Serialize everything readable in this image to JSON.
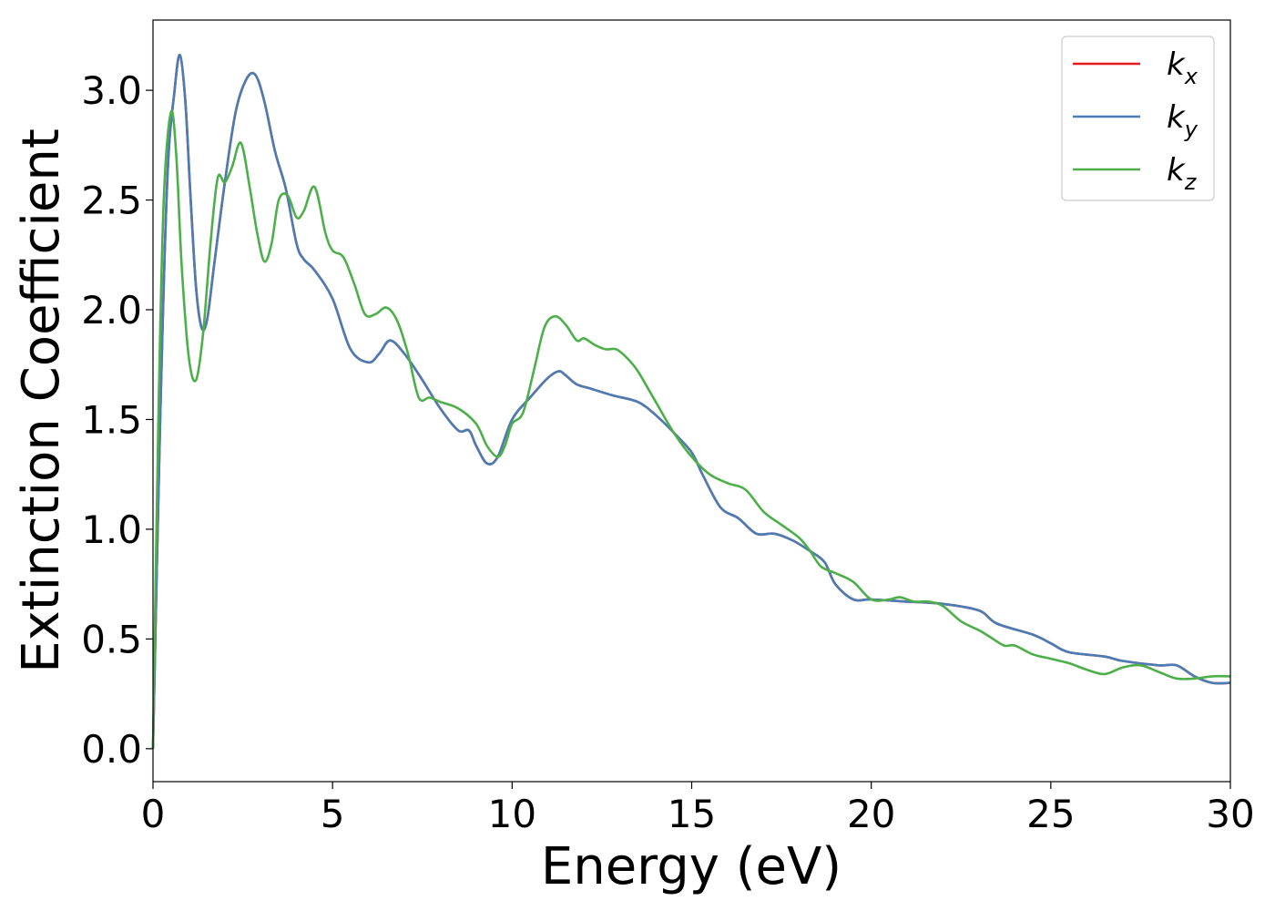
{
  "chart_data": {
    "type": "line",
    "xlabel": "Energy (eV)",
    "ylabel": "Extinction Coefficient",
    "xlim": [
      0,
      30
    ],
    "ylim": [
      -0.15,
      3.32
    ],
    "xticks": [
      0,
      5,
      10,
      15,
      20,
      25,
      30
    ],
    "xtick_labels": [
      "0",
      "5",
      "10",
      "15",
      "20",
      "25",
      "30"
    ],
    "yticks": [
      0.0,
      0.5,
      1.0,
      1.5,
      2.0,
      2.5,
      3.0
    ],
    "ytick_labels": [
      "0.0",
      "0.5",
      "1.0",
      "1.5",
      "2.0",
      "2.5",
      "3.0"
    ],
    "grid": false,
    "legend_position": "top-right",
    "series": [
      {
        "name": "k_x",
        "legend_base": "k",
        "legend_sub": "x",
        "color": "#e41a1c",
        "x": [
          0,
          0.2,
          0.4,
          0.6,
          0.75,
          0.9,
          1.05,
          1.2,
          1.35,
          1.5,
          1.7,
          2.0,
          2.3,
          2.6,
          2.85,
          3.1,
          3.4,
          3.7,
          4.0,
          4.2,
          4.5,
          5.0,
          5.5,
          6.0,
          6.3,
          6.6,
          7.0,
          7.5,
          8.0,
          8.5,
          8.8,
          9.0,
          9.3,
          9.6,
          10.0,
          10.5,
          11.0,
          11.3,
          11.5,
          11.8,
          12.2,
          12.8,
          13.5,
          14.0,
          14.5,
          15.0,
          15.3,
          15.8,
          16.3,
          16.8,
          17.3,
          17.8,
          18.3,
          18.7,
          19.0,
          19.5,
          20.0,
          21.0,
          22.0,
          23.0,
          23.5,
          24.5,
          25.0,
          25.5,
          26.5,
          27.0,
          28.0,
          28.5,
          29.0,
          29.5,
          30.0
        ],
        "y": [
          0.0,
          1.5,
          2.6,
          3.0,
          3.16,
          2.95,
          2.5,
          2.1,
          1.92,
          1.95,
          2.2,
          2.58,
          2.9,
          3.05,
          3.07,
          2.95,
          2.72,
          2.55,
          2.3,
          2.23,
          2.18,
          2.05,
          1.82,
          1.76,
          1.8,
          1.86,
          1.8,
          1.68,
          1.55,
          1.45,
          1.45,
          1.38,
          1.3,
          1.33,
          1.5,
          1.6,
          1.69,
          1.72,
          1.7,
          1.66,
          1.64,
          1.61,
          1.58,
          1.52,
          1.44,
          1.35,
          1.25,
          1.1,
          1.05,
          0.98,
          0.98,
          0.95,
          0.9,
          0.85,
          0.75,
          0.68,
          0.68,
          0.67,
          0.66,
          0.63,
          0.57,
          0.52,
          0.48,
          0.44,
          0.42,
          0.4,
          0.38,
          0.38,
          0.33,
          0.3,
          0.3
        ]
      },
      {
        "name": "k_y",
        "legend_base": "k",
        "legend_sub": "y",
        "color": "#4a7db5",
        "x": [
          0,
          0.2,
          0.4,
          0.6,
          0.75,
          0.9,
          1.05,
          1.2,
          1.35,
          1.5,
          1.7,
          2.0,
          2.3,
          2.6,
          2.85,
          3.1,
          3.4,
          3.7,
          4.0,
          4.2,
          4.5,
          5.0,
          5.5,
          6.0,
          6.3,
          6.6,
          7.0,
          7.5,
          8.0,
          8.5,
          8.8,
          9.0,
          9.3,
          9.6,
          10.0,
          10.5,
          11.0,
          11.3,
          11.5,
          11.8,
          12.2,
          12.8,
          13.5,
          14.0,
          14.5,
          15.0,
          15.3,
          15.8,
          16.3,
          16.8,
          17.3,
          17.8,
          18.3,
          18.7,
          19.0,
          19.5,
          20.0,
          21.0,
          22.0,
          23.0,
          23.5,
          24.5,
          25.0,
          25.5,
          26.5,
          27.0,
          28.0,
          28.5,
          29.0,
          29.5,
          30.0
        ],
        "y": [
          0.0,
          1.5,
          2.6,
          3.0,
          3.16,
          2.95,
          2.5,
          2.1,
          1.92,
          1.95,
          2.2,
          2.58,
          2.9,
          3.05,
          3.07,
          2.95,
          2.72,
          2.55,
          2.3,
          2.23,
          2.18,
          2.05,
          1.82,
          1.76,
          1.8,
          1.86,
          1.8,
          1.68,
          1.55,
          1.45,
          1.45,
          1.38,
          1.3,
          1.33,
          1.5,
          1.6,
          1.69,
          1.72,
          1.7,
          1.66,
          1.64,
          1.61,
          1.58,
          1.52,
          1.44,
          1.35,
          1.25,
          1.1,
          1.05,
          0.98,
          0.98,
          0.95,
          0.9,
          0.85,
          0.75,
          0.68,
          0.68,
          0.67,
          0.66,
          0.63,
          0.57,
          0.52,
          0.48,
          0.44,
          0.42,
          0.4,
          0.38,
          0.38,
          0.33,
          0.3,
          0.3
        ]
      },
      {
        "name": "k_z",
        "legend_base": "k",
        "legend_sub": "z",
        "color": "#4daf4a",
        "x": [
          0,
          0.15,
          0.3,
          0.5,
          0.65,
          0.8,
          1.0,
          1.2,
          1.4,
          1.6,
          1.8,
          2.0,
          2.2,
          2.45,
          2.7,
          2.9,
          3.1,
          3.3,
          3.5,
          3.75,
          4.0,
          4.2,
          4.5,
          4.8,
          5.0,
          5.3,
          5.6,
          5.9,
          6.2,
          6.5,
          6.8,
          7.1,
          7.4,
          7.7,
          8.0,
          8.5,
          9.0,
          9.3,
          9.6,
          9.8,
          10.0,
          10.3,
          10.6,
          10.9,
          11.2,
          11.5,
          11.8,
          12.0,
          12.3,
          12.6,
          12.9,
          13.2,
          13.5,
          14.0,
          14.5,
          15.0,
          15.5,
          16.0,
          16.5,
          17.0,
          17.5,
          18.0,
          18.3,
          18.6,
          19.0,
          19.5,
          20.0,
          20.5,
          20.8,
          21.2,
          21.6,
          22.0,
          22.5,
          23.0,
          23.3,
          23.7,
          24.0,
          24.5,
          25.0,
          25.5,
          26.0,
          26.5,
          27.0,
          27.5,
          28.0,
          28.5,
          29.0,
          29.5,
          30.0
        ],
        "y": [
          0.0,
          1.5,
          2.5,
          2.9,
          2.7,
          2.2,
          1.78,
          1.68,
          1.9,
          2.3,
          2.6,
          2.58,
          2.65,
          2.76,
          2.55,
          2.35,
          2.22,
          2.3,
          2.5,
          2.52,
          2.42,
          2.45,
          2.56,
          2.35,
          2.27,
          2.24,
          2.12,
          1.98,
          1.98,
          2.01,
          1.95,
          1.8,
          1.6,
          1.6,
          1.58,
          1.55,
          1.48,
          1.38,
          1.33,
          1.38,
          1.48,
          1.53,
          1.72,
          1.92,
          1.97,
          1.93,
          1.86,
          1.87,
          1.84,
          1.82,
          1.82,
          1.78,
          1.72,
          1.58,
          1.44,
          1.33,
          1.25,
          1.21,
          1.18,
          1.08,
          1.02,
          0.96,
          0.9,
          0.83,
          0.8,
          0.76,
          0.68,
          0.68,
          0.69,
          0.67,
          0.67,
          0.65,
          0.58,
          0.54,
          0.51,
          0.47,
          0.47,
          0.43,
          0.41,
          0.39,
          0.36,
          0.34,
          0.37,
          0.38,
          0.35,
          0.32,
          0.32,
          0.33,
          0.33
        ]
      }
    ]
  }
}
